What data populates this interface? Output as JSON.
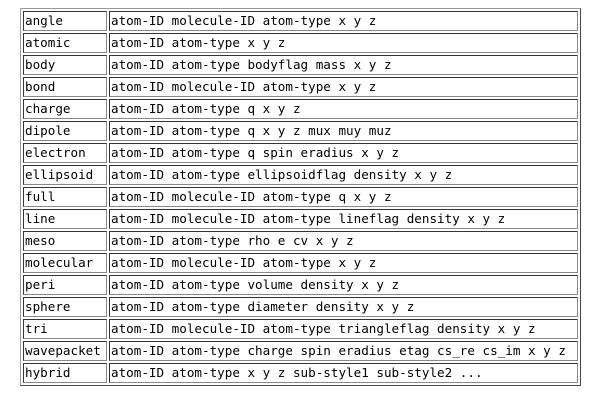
{
  "rows": [
    {
      "style": "angle",
      "columns": "atom-ID molecule-ID atom-type x y z"
    },
    {
      "style": "atomic",
      "columns": "atom-ID atom-type x y z"
    },
    {
      "style": "body",
      "columns": "atom-ID atom-type bodyflag mass x y z"
    },
    {
      "style": "bond",
      "columns": "atom-ID molecule-ID atom-type x y z"
    },
    {
      "style": "charge",
      "columns": "atom-ID atom-type q x y z"
    },
    {
      "style": "dipole",
      "columns": "atom-ID atom-type q x y z mux muy muz"
    },
    {
      "style": "electron",
      "columns": "atom-ID atom-type q spin eradius x y z"
    },
    {
      "style": "ellipsoid",
      "columns": "atom-ID atom-type ellipsoidflag density x y z"
    },
    {
      "style": "full",
      "columns": "atom-ID molecule-ID atom-type q x y z"
    },
    {
      "style": "line",
      "columns": "atom-ID molecule-ID atom-type lineflag density x y z"
    },
    {
      "style": "meso",
      "columns": "atom-ID atom-type rho e cv x y z"
    },
    {
      "style": "molecular",
      "columns": "atom-ID molecule-ID atom-type x y z"
    },
    {
      "style": "peri",
      "columns": "atom-ID atom-type volume density x y z"
    },
    {
      "style": "sphere",
      "columns": "atom-ID atom-type diameter density x y z"
    },
    {
      "style": "tri",
      "columns": "atom-ID molecule-ID atom-type triangleflag density x y z"
    },
    {
      "style": "wavepacket",
      "columns": "atom-ID atom-type charge spin eradius etag cs_re cs_im x y z"
    },
    {
      "style": "hybrid",
      "columns": "atom-ID atom-type x y z sub-style1 sub-style2 ..."
    }
  ]
}
